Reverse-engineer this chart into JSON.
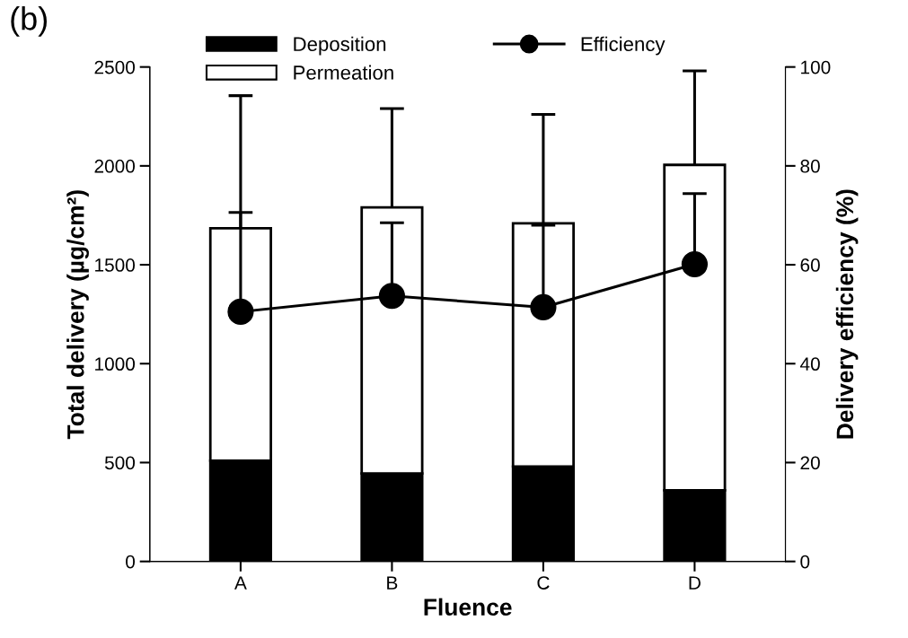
{
  "chart_data": {
    "type": "bar",
    "stacked": true,
    "xlabel": "Fluence",
    "ylabel": "Total delivery (µg/cm²)",
    "y2label": "Delivery efficiency (%)",
    "categories": [
      "A",
      "B",
      "C",
      "D"
    ],
    "series": [
      {
        "name": "Deposition",
        "color": "#000000",
        "values": [
          510,
          445,
          480,
          360
        ]
      },
      {
        "name": "Permeation",
        "color": "#ffffff",
        "values": [
          1175,
          1345,
          1230,
          1645
        ],
        "errors": [
          [
            1685,
            2355
          ],
          [
            1790,
            2290
          ],
          [
            1710,
            2260
          ],
          [
            2005,
            2480
          ]
        ]
      },
      {
        "name": "Efficiency",
        "type": "line",
        "axis": "y2",
        "color": "#000000",
        "marker": "circle",
        "values": [
          50.5,
          53.7,
          51.4,
          60.1
        ],
        "errors": [
          [
            50.5,
            70.6
          ],
          [
            53.7,
            68.5
          ],
          [
            51.4,
            68.0
          ],
          [
            60.1,
            74.4
          ]
        ]
      }
    ],
    "ylim": [
      0,
      2500
    ],
    "yticks": [
      0,
      500,
      1000,
      1500,
      2000,
      2500
    ],
    "y2lim": [
      0,
      100
    ],
    "y2ticks": [
      0,
      20,
      40,
      60,
      80,
      100
    ],
    "grid": false,
    "legend": "top",
    "annotations": [
      "(b)"
    ]
  }
}
